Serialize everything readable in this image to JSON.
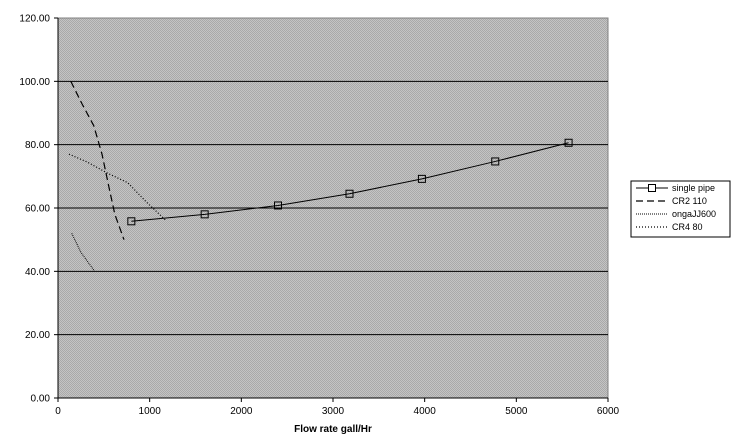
{
  "chart_data": {
    "type": "line",
    "title": "",
    "xlabel": "Flow rate gall/Hr",
    "ylabel": "",
    "xlim": [
      0,
      6000
    ],
    "ylim": [
      0,
      120
    ],
    "x_ticks": [
      "0",
      "1000",
      "2000",
      "3000",
      "4000",
      "5000",
      "6000"
    ],
    "y_ticks": [
      "0.00",
      "20.00",
      "40.00",
      "60.00",
      "80.00",
      "100.00",
      "120.00"
    ],
    "grid": "horizontal",
    "legend_position": "right",
    "plot_background": "#c0c0c0",
    "series": [
      {
        "name": "single pipe",
        "style": "solid-square-markers",
        "x": [
          800,
          1600,
          2400,
          3180,
          3970,
          4770,
          5570
        ],
        "y": [
          55.8,
          58.0,
          60.8,
          64.5,
          69.2,
          74.7,
          80.6
        ]
      },
      {
        "name": "CR2 110",
        "style": "dashed",
        "x": [
          140,
          260,
          390,
          480,
          560,
          620,
          720
        ],
        "y": [
          100,
          93,
          86,
          77,
          66,
          58,
          50
        ]
      },
      {
        "name": "ongaJJ600",
        "style": "fine-dotted",
        "x": [
          150,
          250,
          400
        ],
        "y": [
          52,
          46,
          40
        ]
      },
      {
        "name": "CR4 80",
        "style": "dotted",
        "x": [
          120,
          320,
          540,
          760,
          960,
          1180
        ],
        "y": [
          77,
          74.5,
          71,
          68,
          62,
          56
        ]
      }
    ]
  }
}
